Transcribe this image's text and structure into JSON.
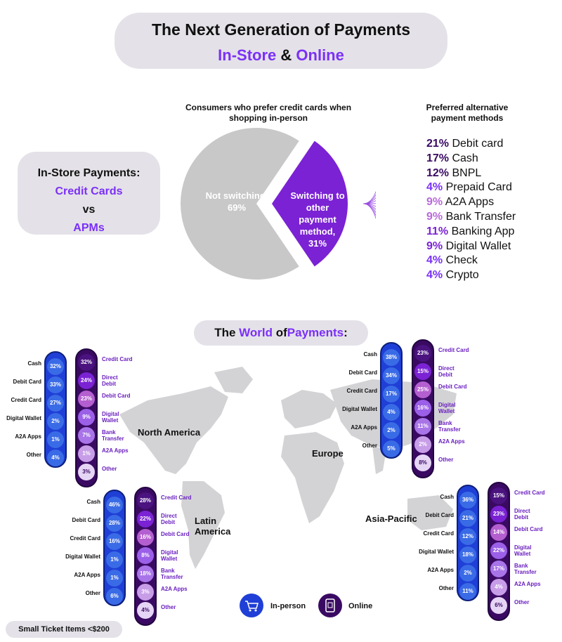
{
  "header": {
    "title": "The Next Generation of Payments",
    "subtitle_part1": "In-Store",
    "subtitle_amp": "&",
    "subtitle_part2": "Online"
  },
  "instore_box": {
    "line1": "In-Store Payments:",
    "line2": "Credit Cards",
    "line3": "vs",
    "line4": "APMs"
  },
  "footer": {
    "label": "Small Ticket Items <$200"
  },
  "legend": {
    "inperson": "In-person",
    "online": "Online"
  },
  "colors": {
    "purple": "#7b2ff7",
    "darkpurple": "#3a0a63",
    "blue": "#1f3fd6",
    "grey": "#c8c8c8"
  },
  "chart_data": [
    {
      "type": "pie",
      "title": "Consumers who prefer credit cards when shopping in-person",
      "slices": [
        {
          "label": "Not switching,",
          "value": 69,
          "value_label": "69%",
          "color": "#c8c8c8"
        },
        {
          "label": "Switching to other payment method,",
          "value": 31,
          "value_label": "31%",
          "color": "#7b22d4"
        }
      ]
    },
    {
      "type": "table",
      "title": "Preferred alternative payment methods",
      "rows": [
        {
          "value": "21%",
          "label": "Debit card",
          "color": "#3a0a63"
        },
        {
          "value": "17%",
          "label": "Cash",
          "color": "#3a0a63"
        },
        {
          "value": "12%",
          "label": "BNPL",
          "color": "#3a0a63"
        },
        {
          "value": "4%",
          "label": "Prepaid Card",
          "color": "#7b2ff7"
        },
        {
          "value": "9%",
          "label": "A2A Apps",
          "color": "#b86ad9"
        },
        {
          "value": "9%",
          "label": "Bank Transfer",
          "color": "#b86ad9"
        },
        {
          "value": "11%",
          "label": "Banking App",
          "color": "#7b22d4"
        },
        {
          "value": "9%",
          "label": "Digital Wallet",
          "color": "#7b22d4"
        },
        {
          "value": "4%",
          "label": "Check",
          "color": "#7b2ff7"
        },
        {
          "value": "4%",
          "label": "Crypto",
          "color": "#7b2ff7"
        }
      ]
    },
    {
      "type": "table",
      "title_prefix": "The",
      "title_highlight1": "World",
      "title_mid": "of",
      "title_highlight2": "Payments",
      "title_suffix": ":",
      "regions": [
        {
          "name": "North America",
          "inperson": [
            {
              "label": "Cash",
              "value": "32%"
            },
            {
              "label": "Debit Card",
              "value": "33%"
            },
            {
              "label": "Credit Card",
              "value": "27%"
            },
            {
              "label": "Digital Wallet",
              "value": "2%"
            },
            {
              "label": "A2A Apps",
              "value": "1%"
            },
            {
              "label": "Other",
              "value": "4%"
            }
          ],
          "online": [
            {
              "label": "Credit Card",
              "value": "32%"
            },
            {
              "label": "Direct Debit",
              "value": "24%"
            },
            {
              "label": "Debit Card",
              "value": "23%"
            },
            {
              "label": "Digital Wallet",
              "value": "9%"
            },
            {
              "label": "Bank Transfer",
              "value": "7%"
            },
            {
              "label": "A2A Apps",
              "value": "1%"
            },
            {
              "label": "Other",
              "value": "3%"
            }
          ]
        },
        {
          "name": "Europe",
          "inperson": [
            {
              "label": "Cash",
              "value": "38%"
            },
            {
              "label": "Debit Card",
              "value": "34%"
            },
            {
              "label": "Credit Card",
              "value": "17%"
            },
            {
              "label": "Digital Wallet",
              "value": "4%"
            },
            {
              "label": "A2A Apps",
              "value": "2%"
            },
            {
              "label": "Other",
              "value": "5%"
            }
          ],
          "online": [
            {
              "label": "Credit Card",
              "value": "23%"
            },
            {
              "label": "Direct Debit",
              "value": "15%"
            },
            {
              "label": "Debit Card",
              "value": "25%"
            },
            {
              "label": "Digital Wallet",
              "value": "16%"
            },
            {
              "label": "Bank Transfer",
              "value": "11%"
            },
            {
              "label": "A2A Apps",
              "value": "2%"
            },
            {
              "label": "Other",
              "value": "8%"
            }
          ]
        },
        {
          "name": "Latin America",
          "inperson": [
            {
              "label": "Cash",
              "value": "46%"
            },
            {
              "label": "Debit Card",
              "value": "28%"
            },
            {
              "label": "Credit Card",
              "value": "16%"
            },
            {
              "label": "Digital Wallet",
              "value": "1%"
            },
            {
              "label": "A2A Apps",
              "value": "1%"
            },
            {
              "label": "Other",
              "value": "6%"
            }
          ],
          "online": [
            {
              "label": "Credit Card",
              "value": "28%"
            },
            {
              "label": "Direct Debit",
              "value": "22%"
            },
            {
              "label": "Debit Card",
              "value": "16%"
            },
            {
              "label": "Digital Wallet",
              "value": "8%"
            },
            {
              "label": "Bank Transfer",
              "value": "18%"
            },
            {
              "label": "A2A Apps",
              "value": "3%"
            },
            {
              "label": "Other",
              "value": "4%"
            }
          ]
        },
        {
          "name": "Asia-Pacific",
          "inperson": [
            {
              "label": "Cash",
              "value": "36%"
            },
            {
              "label": "Debit Card",
              "value": "21%"
            },
            {
              "label": "Credit Card",
              "value": "12%"
            },
            {
              "label": "Digital Wallet",
              "value": "18%"
            },
            {
              "label": "A2A Apps",
              "value": "2%"
            },
            {
              "label": "Other",
              "value": "11%"
            }
          ],
          "online": [
            {
              "label": "Credit Card",
              "value": "15%"
            },
            {
              "label": "Direct Debit",
              "value": "23%"
            },
            {
              "label": "Debit Card",
              "value": "14%"
            },
            {
              "label": "Digital Wallet",
              "value": "22%"
            },
            {
              "label": "Bank Transfer",
              "value": "17%"
            },
            {
              "label": "A2A Apps",
              "value": "4%"
            },
            {
              "label": "Other",
              "value": "6%"
            }
          ]
        }
      ]
    }
  ]
}
